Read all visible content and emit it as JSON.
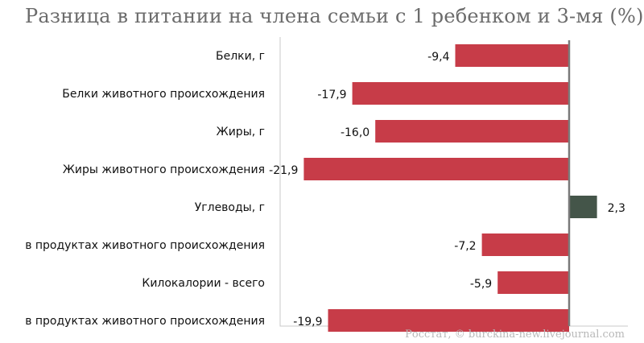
{
  "title": "Разница в питании на члена семьи с 1 ребенком и 3-мя (%)",
  "source": "Росстат, © burckina-new.livejournal.com",
  "colors": {
    "negative": "#c73c48",
    "positive": "#445549",
    "axis": "#7a7a7a",
    "panel_border": "#c8c8c8"
  },
  "chart_data": {
    "type": "bar",
    "orientation": "horizontal",
    "title": "Разница в питании на члена семьи с 1 ребенком и 3-мя (%)",
    "categories": [
      "Белки, г",
      "Белки животного происхождения",
      "Жиры, г",
      "Жиры животного происхождения",
      "Углеводы, г",
      "в продуктах животного происхождения",
      "Килокалории - всего",
      "в продуктах животного происхождения"
    ],
    "values": [
      -9.4,
      -17.9,
      -16.0,
      -21.9,
      2.3,
      -7.2,
      -5.9,
      -19.9
    ],
    "value_labels": [
      "-9,4",
      "-17,9",
      "-16,0",
      "-21,9",
      "2,3",
      "-7,2",
      "-5,9",
      "-19,9"
    ],
    "xlim": [
      -25,
      5
    ],
    "grid": false,
    "legend": "none",
    "xlabel": "",
    "ylabel": ""
  }
}
